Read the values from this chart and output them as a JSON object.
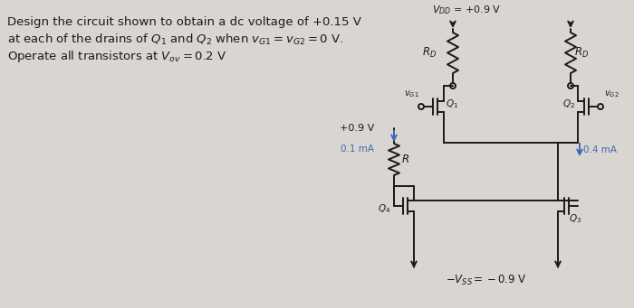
{
  "bg_color": "#d9d6d1",
  "text_color": "#1a1a1a",
  "blue_color": "#4169b0",
  "line_color": "#1a1a1a",
  "line1": "Design the circuit shown to obtain a dc voltage of +0.15 V",
  "line2": "at each of the drains of $Q_1$ and $Q_2$ when $v_{G1} = v_{G2} = 0$ V.",
  "line3": "Operate all transistors at $V_{ov} = 0.2$ V",
  "vdd_label": "$V_{DD}$ = +0.9 V",
  "vss_label": "$-V_{SS} = -0.9$ V",
  "vplus_label": "+0.9 V",
  "i1_label": "0.1 mA",
  "i2_label": "0.4 mA",
  "R_label": "$R$",
  "RD_label": "$R_D$",
  "Q1_label": "$Q_1$",
  "Q2_label": "$Q_2$",
  "Q3_label": "$Q_3$",
  "Q4_label": "$Q_4$",
  "vG1_label": "$v_{G1}$",
  "vG2_label": "$v_{G2}$"
}
